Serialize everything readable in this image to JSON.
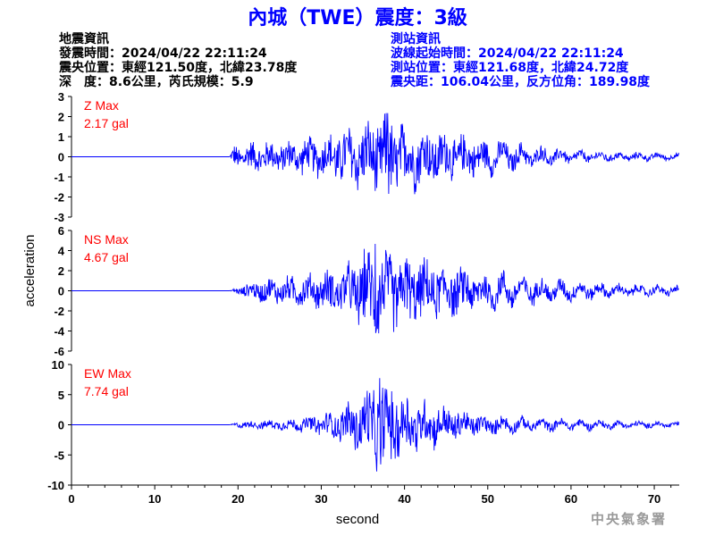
{
  "header": {
    "title": "內城（TWE）震度：3級"
  },
  "quake_info": {
    "heading": "地震資訊",
    "time": "發震時間：2024/04/22 22:11:24",
    "epicenter": "震央位置：東經121.50度，北緯23.78度",
    "depth_magnitude": "深　度：8.6公里，芮氏規模：5.9"
  },
  "station_info": {
    "heading": "測站資訊",
    "wave_start": "波線起始時間：2024/04/22 22:11:24",
    "location": "測站位置：東經121.68度，北緯24.72度",
    "distance": "震央距：106.04公里，反方位角：189.98度"
  },
  "logo_text": "中央氣象署",
  "colors": {
    "trace": "#0000ff",
    "peak_label": "#ff0000",
    "title": "#0000ff",
    "station_info": "#0000ff"
  },
  "chart_data": {
    "type": "line",
    "xlabel": "second",
    "ylabel": "acceleration",
    "xlim": [
      0,
      73
    ],
    "xticks": [
      0,
      10,
      20,
      30,
      40,
      50,
      60,
      70
    ],
    "grid": false,
    "series": [
      {
        "name": "Z",
        "label_line1": "Z Max",
        "label_line2": "2.17 gal",
        "ylim": [
          -3,
          3
        ],
        "yticks": [
          -3,
          -2,
          -1,
          0,
          1,
          2,
          3
        ],
        "onset": 19.0,
        "peak_time": 38.0,
        "peak": 2.17,
        "approx_amplitude_envelope": [
          [
            19,
            0.0
          ],
          [
            19.5,
            0.6
          ],
          [
            22,
            0.8
          ],
          [
            26,
            0.8
          ],
          [
            30,
            1.0
          ],
          [
            33,
            1.5
          ],
          [
            36,
            1.8
          ],
          [
            38,
            2.17
          ],
          [
            42,
            1.5
          ],
          [
            45,
            1.3
          ],
          [
            50,
            0.8
          ],
          [
            55,
            0.5
          ],
          [
            60,
            0.3
          ],
          [
            65,
            0.2
          ],
          [
            73,
            0.15
          ]
        ]
      },
      {
        "name": "NS",
        "label_line1": "NS Max",
        "label_line2": "4.67 gal",
        "ylim": [
          -6,
          6
        ],
        "yticks": [
          -6,
          -4,
          -2,
          0,
          2,
          4,
          6
        ],
        "onset": 19.0,
        "peak_time": 36.5,
        "peak": 4.67,
        "approx_amplitude_envelope": [
          [
            19,
            0.0
          ],
          [
            20,
            0.4
          ],
          [
            23,
            1.2
          ],
          [
            27,
            1.5
          ],
          [
            30,
            1.8
          ],
          [
            33,
            2.5
          ],
          [
            36.5,
            4.67
          ],
          [
            38,
            4.0
          ],
          [
            42,
            3.0
          ],
          [
            46,
            2.5
          ],
          [
            50,
            1.8
          ],
          [
            55,
            1.2
          ],
          [
            60,
            0.9
          ],
          [
            65,
            0.6
          ],
          [
            73,
            0.4
          ]
        ]
      },
      {
        "name": "EW",
        "label_line1": "EW Max",
        "label_line2": "7.74 gal",
        "ylim": [
          -10,
          10
        ],
        "yticks": [
          -10,
          -5,
          0,
          5,
          10
        ],
        "onset": 19.0,
        "peak_time": 37.0,
        "peak": 7.74,
        "approx_amplitude_envelope": [
          [
            19,
            0.0
          ],
          [
            20,
            0.5
          ],
          [
            24,
            0.8
          ],
          [
            28,
            1.2
          ],
          [
            32,
            2.5
          ],
          [
            35,
            5.5
          ],
          [
            37,
            7.74
          ],
          [
            39,
            6.0
          ],
          [
            42,
            4.5
          ],
          [
            45,
            3.0
          ],
          [
            50,
            1.5
          ],
          [
            55,
            1.0
          ],
          [
            60,
            0.8
          ],
          [
            65,
            0.6
          ],
          [
            73,
            0.4
          ]
        ]
      }
    ]
  }
}
